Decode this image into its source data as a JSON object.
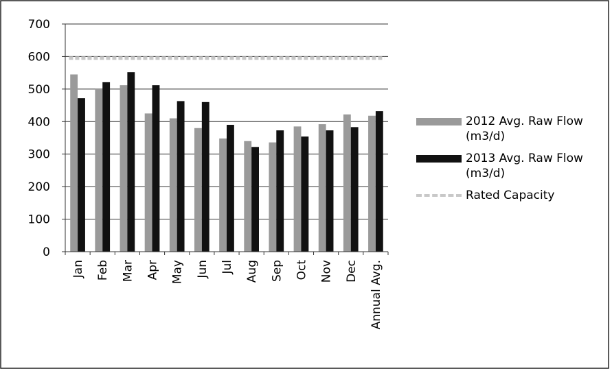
{
  "chart_data": {
    "type": "bar",
    "categories": [
      "Jan",
      "Feb",
      "Mar",
      "Apr",
      "May",
      "Jun",
      "Jul",
      "Aug",
      "Sep",
      "Oct",
      "Nov",
      "Dec",
      "Annual Avg."
    ],
    "series": [
      {
        "name": "2012 Avg. Raw Flow (m3/d)",
        "color": "#9a9a9a",
        "values": [
          545,
          500,
          512,
          425,
          410,
          380,
          348,
          340,
          336,
          385,
          392,
          422,
          418
        ]
      },
      {
        "name": "2013 Avg. Raw Flow (m3/d)",
        "color": "#111111",
        "values": [
          472,
          521,
          552,
          512,
          463,
          460,
          390,
          322,
          373,
          354,
          373,
          383,
          432
        ]
      },
      {
        "name": "Rated Capacity",
        "type": "line",
        "color": "#c8c8c8",
        "values": [
          595,
          595,
          595,
          595,
          595,
          595,
          595,
          595,
          595,
          595,
          595,
          595,
          595
        ]
      }
    ],
    "ylim": [
      0,
      700
    ],
    "yticks": [
      0,
      100,
      200,
      300,
      400,
      500,
      600,
      700
    ],
    "grid": true,
    "legend": "right"
  }
}
